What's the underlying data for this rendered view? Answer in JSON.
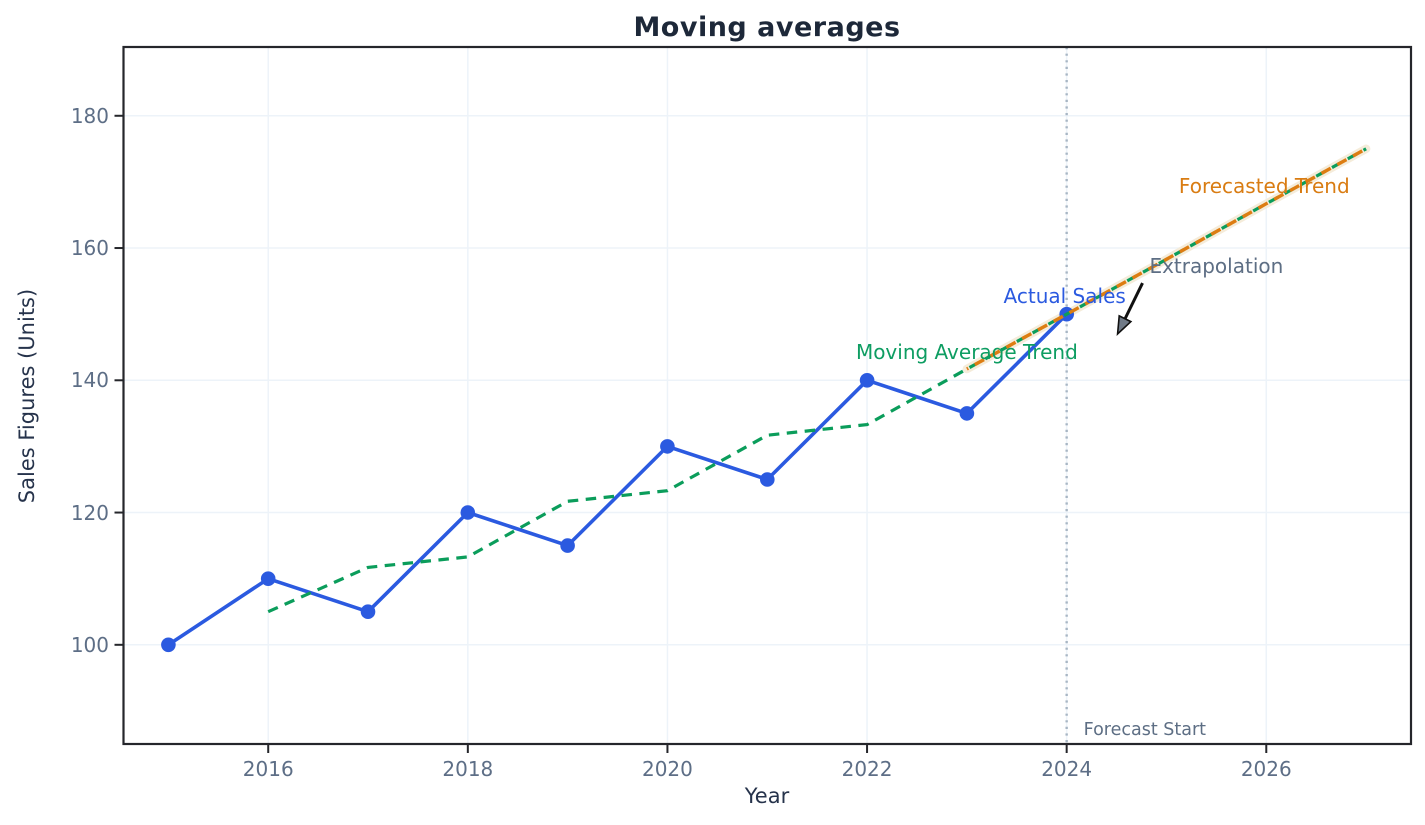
{
  "chart_data": {
    "type": "line",
    "title": "Moving averages",
    "xlabel": "Year",
    "ylabel": "Sales Figures (Units)",
    "xlim": [
      2014.55,
      2027.45
    ],
    "ylim": [
      85.0,
      190.4
    ],
    "x_ticks": [
      2016,
      2018,
      2020,
      2022,
      2024,
      2026
    ],
    "y_ticks": [
      100,
      120,
      140,
      160,
      180
    ],
    "grid": true,
    "grid_color": "#edf3f9",
    "series": [
      {
        "name": "Actual Sales",
        "style": "solid",
        "marker": "circle",
        "color": "#2b5ae0",
        "x": [
          2015,
          2016,
          2017,
          2018,
          2019,
          2020,
          2021,
          2022,
          2023,
          2024
        ],
        "y": [
          100,
          110,
          105,
          120,
          115,
          130,
          125,
          140,
          135,
          150
        ]
      },
      {
        "name": "Moving Average Trend",
        "style": "dashed",
        "color": "#0b9d5b",
        "x": [
          2016,
          2017,
          2018,
          2019,
          2020,
          2021,
          2022,
          2023,
          2024,
          2025,
          2026,
          2027
        ],
        "y": [
          105,
          111.7,
          113.3,
          121.7,
          123.3,
          131.7,
          133.3,
          141.7,
          150,
          158.3,
          166.7,
          175
        ]
      },
      {
        "name": "Forecasted Trend",
        "style": "dashed",
        "color": "#dd7d12",
        "halo_color": "#f5ecda",
        "x": [
          2023,
          2024,
          2025,
          2026,
          2027
        ],
        "y": [
          141.7,
          150,
          158.3,
          166.7,
          175
        ]
      }
    ],
    "vline": {
      "x": 2024,
      "color": "#a8b6c4",
      "style": "dotted",
      "label": "Forecast Start"
    },
    "annotations": [
      {
        "id": "actual-sales-label",
        "text": "Actual Sales",
        "x": 2023.98,
        "y": 152.7,
        "color": "#2b5ae0",
        "anchor": "middle"
      },
      {
        "id": "moving-average-trend-label",
        "text": "Moving Average Trend",
        "x": 2023.0,
        "y": 144.3,
        "color": "#0e9d62",
        "anchor": "middle"
      },
      {
        "id": "forecasted-trend-label",
        "text": "Forecasted Trend",
        "x": 2025.98,
        "y": 169.4,
        "color": "#d97c12",
        "anchor": "middle"
      },
      {
        "id": "extrapolation-label",
        "text": "Extrapolation",
        "x": 2025.5,
        "y": 157.3,
        "color": "#5d6e84",
        "anchor": "middle"
      },
      {
        "id": "forecast-start-label",
        "text": "Forecast Start",
        "x": 2024.11,
        "y": 87.1,
        "color": "#5d6e84",
        "anchor": "start",
        "boxed": true
      }
    ],
    "arrow": {
      "tail": [
        2024.76,
        154.7
      ],
      "tip": [
        2024.51,
        147.0
      ],
      "color": "#111111",
      "head_fill": "#707a87"
    }
  }
}
